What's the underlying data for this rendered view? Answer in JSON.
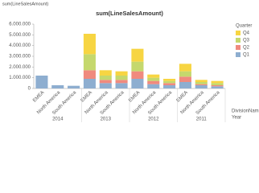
{
  "tab_label": "sum(LineSalesAmount)",
  "chart_data": {
    "type": "stacked-bar",
    "title": "sum(LineSalesAmount)",
    "groups": [
      "2014",
      "2013",
      "2012",
      "2011"
    ],
    "categories": [
      "EMEA",
      "North America",
      "South America",
      "EMEA",
      "North America",
      "South America",
      "EMEA",
      "North America",
      "South America",
      "EMEA",
      "North America",
      "South America"
    ],
    "x_label": "DivisionNam",
    "group_label": "Year",
    "legend_title": "Quarter",
    "legend": "right",
    "series": [
      {
        "name": "Q1",
        "color": "#8eaed0",
        "values": [
          1200000,
          300000,
          250000,
          900000,
          500000,
          500000,
          900000,
          400000,
          300000,
          600000,
          300000,
          200000
        ]
      },
      {
        "name": "Q2",
        "color": "#f08a7e",
        "values": [
          null,
          null,
          null,
          800000,
          300000,
          300000,
          700000,
          300000,
          200000,
          500000,
          100000,
          100000
        ]
      },
      {
        "name": "Q3",
        "color": "#c5d86d",
        "values": [
          null,
          null,
          null,
          1500000,
          400000,
          400000,
          900000,
          300000,
          200000,
          500000,
          200000,
          200000
        ]
      },
      {
        "name": "Q4",
        "color": "#f7d542",
        "values": [
          null,
          null,
          null,
          1900000,
          500000,
          400000,
          1200000,
          300000,
          200000,
          700000,
          200000,
          200000
        ]
      }
    ],
    "ylim": [
      0,
      6000000
    ],
    "yticks": [
      0,
      {
        "value": 1000000,
        "label": "1.000.000"
      },
      {
        "value": 2000000,
        "label": "2.000.000"
      },
      {
        "value": 3000000,
        "label": "3.000.000"
      },
      {
        "value": 4000000,
        "label": "4.000.000"
      },
      {
        "value": 5000000,
        "label": "5.000.000"
      },
      {
        "value": 6000000,
        "label": "6.000.000"
      }
    ]
  }
}
